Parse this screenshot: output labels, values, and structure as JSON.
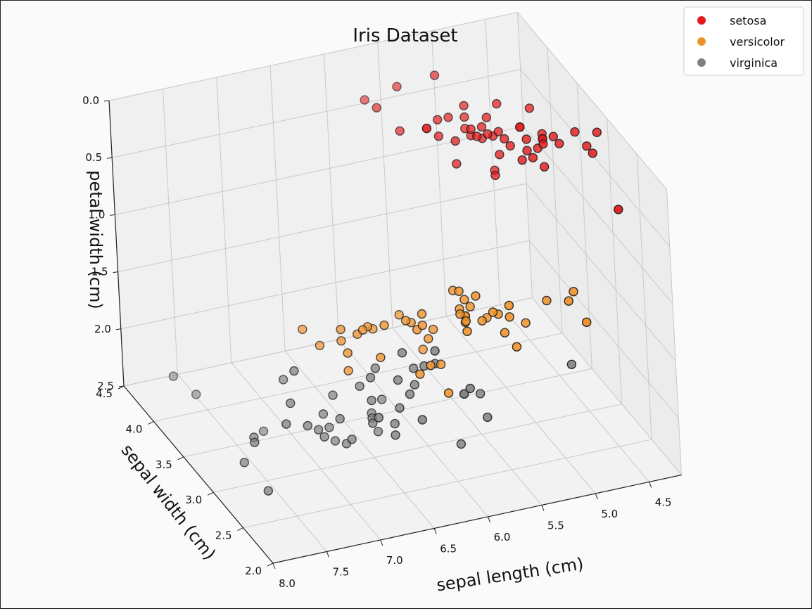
{
  "chart_data": {
    "type": "scatter",
    "projection": "3d",
    "title": "Iris Dataset",
    "axes": {
      "x": {
        "label": "sepal length (cm)",
        "ticks": [
          "8.0",
          "7.5",
          "7.0",
          "6.5",
          "6.0",
          "5.5",
          "5.0",
          "4.5"
        ],
        "range": [
          4.2,
          8.0
        ],
        "reversed": true
      },
      "y": {
        "label": "sepal width (cm)",
        "ticks": [
          "2.0",
          "2.5",
          "3.0",
          "3.5",
          "4.0",
          "4.5"
        ],
        "range": [
          2.0,
          4.5
        ]
      },
      "z": {
        "label": "petal width (cm)",
        "ticks": [
          "0.0",
          "0.5",
          "1.0",
          "1.5",
          "2.0",
          "2.5"
        ],
        "range": [
          0.0,
          2.5
        ],
        "inverted": true
      }
    },
    "grid": true,
    "legend": {
      "placement": "top-right",
      "entries": [
        "setosa",
        "versicolor",
        "virginica"
      ]
    },
    "colors": {
      "setosa": "#e41a1c",
      "versicolor": "#f0922b",
      "virginica": "#808080"
    },
    "series": [
      {
        "name": "setosa",
        "color": "#e41a1c",
        "points": [
          [
            5.1,
            3.5,
            0.2
          ],
          [
            4.9,
            3.0,
            0.2
          ],
          [
            4.7,
            3.2,
            0.2
          ],
          [
            4.6,
            3.1,
            0.2
          ],
          [
            5.0,
            3.6,
            0.2
          ],
          [
            5.4,
            3.9,
            0.4
          ],
          [
            4.6,
            3.4,
            0.3
          ],
          [
            5.0,
            3.4,
            0.2
          ],
          [
            4.4,
            2.9,
            0.2
          ],
          [
            4.9,
            3.1,
            0.1
          ],
          [
            5.4,
            3.7,
            0.2
          ],
          [
            4.8,
            3.4,
            0.2
          ],
          [
            4.8,
            3.0,
            0.1
          ],
          [
            4.3,
            3.0,
            0.1
          ],
          [
            5.8,
            4.0,
            0.2
          ],
          [
            5.7,
            4.4,
            0.4
          ],
          [
            5.4,
            3.9,
            0.4
          ],
          [
            5.1,
            3.5,
            0.3
          ],
          [
            5.7,
            3.8,
            0.3
          ],
          [
            5.1,
            3.8,
            0.3
          ],
          [
            5.4,
            3.4,
            0.2
          ],
          [
            5.1,
            3.7,
            0.4
          ],
          [
            4.6,
            3.6,
            0.2
          ],
          [
            5.1,
            3.3,
            0.5
          ],
          [
            4.8,
            3.4,
            0.2
          ],
          [
            5.0,
            3.0,
            0.2
          ],
          [
            5.0,
            3.4,
            0.4
          ],
          [
            5.2,
            3.5,
            0.2
          ],
          [
            5.2,
            3.4,
            0.2
          ],
          [
            4.7,
            3.2,
            0.2
          ],
          [
            4.8,
            3.1,
            0.2
          ],
          [
            5.4,
            3.4,
            0.4
          ],
          [
            5.2,
            4.1,
            0.1
          ],
          [
            5.5,
            4.2,
            0.2
          ],
          [
            4.9,
            3.1,
            0.2
          ],
          [
            5.0,
            3.2,
            0.2
          ],
          [
            5.5,
            3.5,
            0.2
          ],
          [
            4.9,
            3.6,
            0.1
          ],
          [
            4.4,
            3.0,
            0.2
          ],
          [
            5.1,
            3.4,
            0.2
          ],
          [
            5.0,
            3.5,
            0.3
          ],
          [
            4.5,
            2.3,
            0.3
          ],
          [
            4.4,
            3.2,
            0.2
          ],
          [
            5.0,
            3.5,
            0.6
          ],
          [
            5.1,
            3.8,
            0.4
          ],
          [
            4.8,
            3.0,
            0.3
          ],
          [
            5.1,
            3.8,
            0.2
          ],
          [
            4.6,
            3.2,
            0.2
          ],
          [
            5.3,
            3.7,
            0.2
          ],
          [
            5.0,
            3.3,
            0.2
          ]
        ]
      },
      {
        "name": "versicolor",
        "color": "#f0922b",
        "points": [
          [
            7.0,
            3.2,
            1.4
          ],
          [
            6.4,
            3.2,
            1.5
          ],
          [
            6.9,
            3.1,
            1.5
          ],
          [
            5.5,
            2.3,
            1.3
          ],
          [
            6.5,
            2.8,
            1.5
          ],
          [
            5.7,
            2.8,
            1.3
          ],
          [
            6.3,
            3.3,
            1.6
          ],
          [
            4.9,
            2.4,
            1.0
          ],
          [
            6.6,
            2.9,
            1.3
          ],
          [
            5.2,
            2.7,
            1.4
          ],
          [
            5.0,
            2.0,
            1.0
          ],
          [
            5.9,
            3.0,
            1.5
          ],
          [
            6.0,
            2.2,
            1.0
          ],
          [
            6.1,
            2.9,
            1.4
          ],
          [
            5.6,
            2.9,
            1.3
          ],
          [
            6.7,
            3.1,
            1.4
          ],
          [
            5.6,
            3.0,
            1.5
          ],
          [
            5.8,
            2.7,
            1.0
          ],
          [
            6.2,
            2.2,
            1.5
          ],
          [
            5.6,
            2.5,
            1.1
          ],
          [
            5.9,
            3.2,
            1.8
          ],
          [
            6.1,
            2.8,
            1.3
          ],
          [
            6.3,
            2.5,
            1.5
          ],
          [
            6.1,
            2.8,
            1.2
          ],
          [
            6.4,
            2.9,
            1.3
          ],
          [
            6.6,
            3.0,
            1.4
          ],
          [
            6.8,
            2.8,
            1.4
          ],
          [
            6.7,
            3.0,
            1.7
          ],
          [
            6.0,
            2.9,
            1.5
          ],
          [
            5.7,
            2.6,
            1.0
          ],
          [
            5.5,
            2.4,
            1.1
          ],
          [
            5.5,
            2.4,
            1.0
          ],
          [
            5.8,
            2.7,
            1.2
          ],
          [
            6.0,
            2.7,
            1.6
          ],
          [
            5.4,
            3.0,
            1.5
          ],
          [
            6.0,
            3.4,
            1.6
          ],
          [
            6.7,
            3.1,
            1.5
          ],
          [
            6.3,
            2.3,
            1.3
          ],
          [
            5.6,
            3.0,
            1.3
          ],
          [
            5.5,
            2.5,
            1.3
          ],
          [
            5.5,
            2.6,
            1.2
          ],
          [
            6.1,
            3.0,
            1.4
          ],
          [
            5.8,
            2.6,
            1.2
          ],
          [
            5.0,
            2.3,
            1.0
          ],
          [
            5.6,
            2.7,
            1.3
          ],
          [
            5.7,
            3.0,
            1.2
          ],
          [
            5.7,
            2.9,
            1.3
          ],
          [
            6.2,
            2.9,
            1.3
          ],
          [
            5.1,
            2.5,
            1.1
          ],
          [
            5.7,
            2.8,
            1.3
          ]
        ]
      },
      {
        "name": "virginica",
        "color": "#808080",
        "points": [
          [
            6.3,
            3.3,
            2.5
          ],
          [
            5.8,
            2.7,
            1.9
          ],
          [
            7.1,
            3.0,
            2.1
          ],
          [
            6.3,
            2.9,
            1.8
          ],
          [
            6.5,
            3.0,
            2.2
          ],
          [
            7.6,
            3.0,
            2.1
          ],
          [
            4.9,
            2.5,
            1.7
          ],
          [
            7.3,
            2.9,
            1.8
          ],
          [
            6.7,
            2.5,
            1.8
          ],
          [
            7.2,
            3.6,
            2.5
          ],
          [
            6.5,
            3.2,
            2.0
          ],
          [
            6.4,
            2.7,
            1.9
          ],
          [
            6.8,
            3.0,
            2.1
          ],
          [
            5.7,
            2.5,
            2.0
          ],
          [
            5.8,
            2.8,
            2.4
          ],
          [
            6.4,
            3.2,
            2.3
          ],
          [
            6.5,
            3.0,
            1.8
          ],
          [
            7.7,
            3.8,
            2.2
          ],
          [
            7.7,
            2.6,
            2.3
          ],
          [
            6.0,
            2.2,
            1.5
          ],
          [
            6.9,
            3.2,
            2.3
          ],
          [
            5.6,
            2.8,
            2.0
          ],
          [
            7.7,
            2.8,
            2.0
          ],
          [
            6.3,
            2.7,
            1.8
          ],
          [
            6.7,
            3.3,
            2.1
          ],
          [
            7.2,
            3.2,
            1.8
          ],
          [
            6.2,
            2.8,
            1.8
          ],
          [
            6.1,
            3.0,
            1.8
          ],
          [
            6.4,
            2.8,
            2.1
          ],
          [
            7.2,
            3.0,
            1.6
          ],
          [
            7.4,
            2.8,
            1.9
          ],
          [
            7.9,
            3.8,
            2.0
          ],
          [
            6.4,
            2.8,
            2.2
          ],
          [
            6.3,
            2.8,
            1.5
          ],
          [
            6.1,
            2.6,
            1.4
          ],
          [
            7.7,
            3.0,
            2.3
          ],
          [
            6.3,
            3.4,
            2.4
          ],
          [
            6.4,
            3.1,
            1.8
          ],
          [
            6.0,
            3.0,
            1.8
          ],
          [
            6.9,
            3.1,
            2.1
          ],
          [
            6.7,
            3.1,
            2.4
          ],
          [
            6.9,
            3.1,
            2.3
          ],
          [
            5.8,
            2.7,
            1.9
          ],
          [
            6.8,
            3.2,
            2.3
          ],
          [
            6.7,
            3.3,
            2.5
          ],
          [
            6.7,
            3.0,
            2.3
          ],
          [
            6.3,
            2.5,
            1.9
          ],
          [
            6.5,
            3.0,
            2.0
          ],
          [
            6.2,
            3.4,
            2.3
          ],
          [
            5.9,
            3.0,
            1.8
          ]
        ]
      }
    ]
  }
}
